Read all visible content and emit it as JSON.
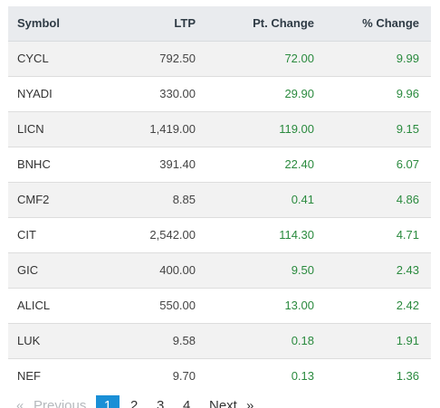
{
  "table": {
    "headers": {
      "symbol": "Symbol",
      "ltp": "LTP",
      "pt_change": "Pt. Change",
      "pct_change": "% Change"
    },
    "rows": [
      {
        "symbol": "CYCL",
        "ltp": "792.50",
        "pt_change": "72.00",
        "pct_change": "9.99"
      },
      {
        "symbol": "NYADI",
        "ltp": "330.00",
        "pt_change": "29.90",
        "pct_change": "9.96"
      },
      {
        "symbol": "LICN",
        "ltp": "1,419.00",
        "pt_change": "119.00",
        "pct_change": "9.15"
      },
      {
        "symbol": "BNHC",
        "ltp": "391.40",
        "pt_change": "22.40",
        "pct_change": "6.07"
      },
      {
        "symbol": "CMF2",
        "ltp": "8.85",
        "pt_change": "0.41",
        "pct_change": "4.86"
      },
      {
        "symbol": "CIT",
        "ltp": "2,542.00",
        "pt_change": "114.30",
        "pct_change": "4.71"
      },
      {
        "symbol": "GIC",
        "ltp": "400.00",
        "pt_change": "9.50",
        "pct_change": "2.43"
      },
      {
        "symbol": "ALICL",
        "ltp": "550.00",
        "pt_change": "13.00",
        "pct_change": "2.42"
      },
      {
        "symbol": "LUK",
        "ltp": "9.58",
        "pt_change": "0.18",
        "pct_change": "1.91"
      },
      {
        "symbol": "NEF",
        "ltp": "9.70",
        "pt_change": "0.13",
        "pct_change": "1.36"
      }
    ]
  },
  "pagination": {
    "first_arrow": "«",
    "previous_label": "Previous",
    "pages": [
      "1",
      "2",
      "3",
      "4"
    ],
    "current_page": "1",
    "next_label": "Next",
    "last_arrow": "»"
  },
  "colors": {
    "positive": "#2a8a3e",
    "header_bg": "#e9ebee",
    "stripe_bg": "#f2f2f2",
    "active_page_bg": "#1a8fd6"
  }
}
